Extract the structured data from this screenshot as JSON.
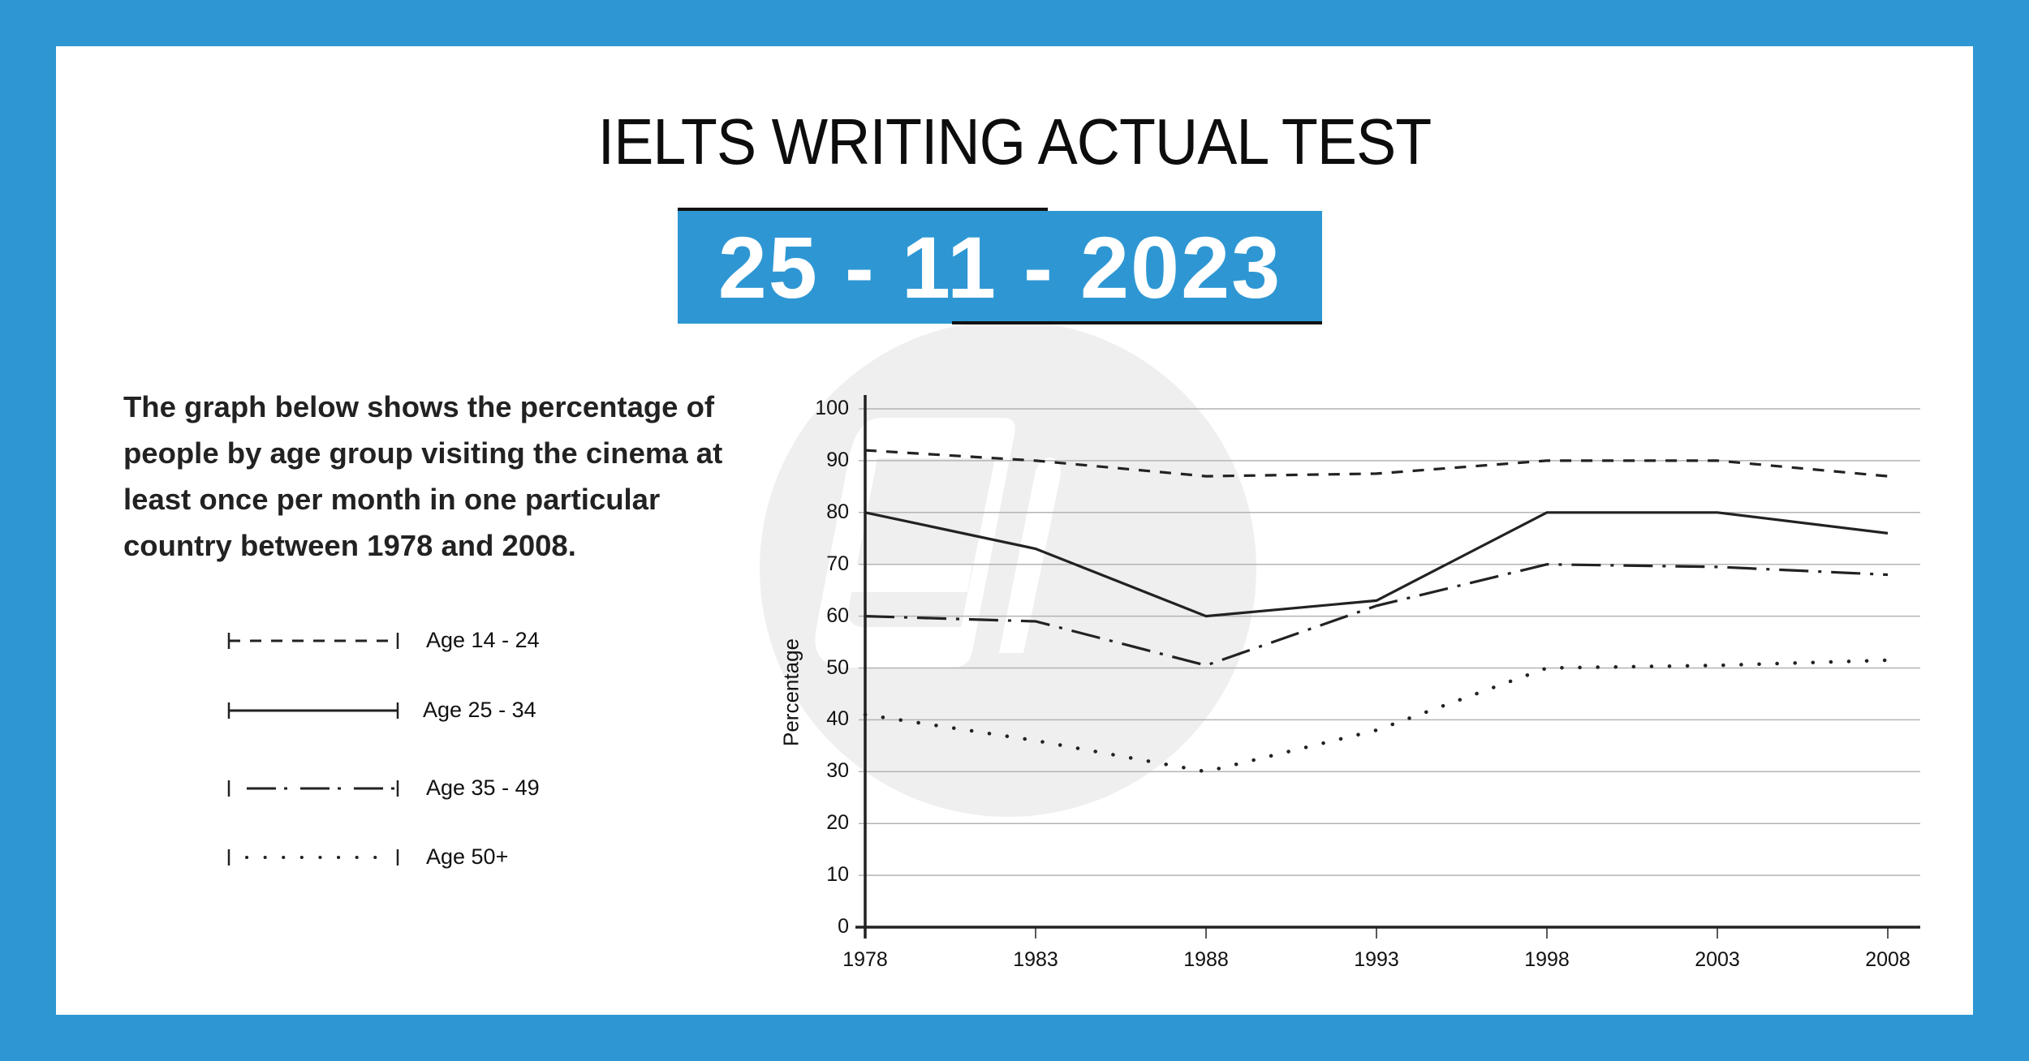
{
  "header": {
    "title": "IELTS WRITING ACTUAL TEST",
    "date": "25 - 11 - 2023"
  },
  "prompt": {
    "text": "The graph below shows the percentage of people by age group visiting the cinema at least once per month in one particular country between 1978 and 2008.",
    "lines": [
      "The graph below shows the percentage of",
      "people by age group visiting the cinema at",
      "least once per month in one particular",
      "country between 1978 and 2008."
    ]
  },
  "legend": {
    "items": [
      {
        "label": "Age 14 - 24",
        "style": "dashed"
      },
      {
        "label": "Age 25 - 34",
        "style": "solid"
      },
      {
        "label": "Age 35 - 49",
        "style": "dash-dot"
      },
      {
        "label": "Age 50+",
        "style": "dotted"
      }
    ]
  },
  "colors": {
    "brand_blue": "#2e97d3",
    "line": "#222222",
    "grid": "#b4b4b4",
    "watermark": "#efefef"
  },
  "chart_data": {
    "type": "line",
    "title": "",
    "xlabel": "",
    "ylabel": "Percentage",
    "categories": [
      "1978",
      "1983",
      "1988",
      "1993",
      "1998",
      "2003",
      "2008"
    ],
    "yticks": [
      "0",
      "10",
      "20",
      "30",
      "40",
      "50",
      "60",
      "70",
      "80",
      "90",
      "100"
    ],
    "ylim": [
      0,
      100
    ],
    "grid": true,
    "legend_position": "left",
    "series": [
      {
        "name": "Age 14 - 24",
        "style": "dashed",
        "values": [
          92,
          90,
          87,
          87.5,
          90,
          90,
          87
        ]
      },
      {
        "name": "Age 25 - 34",
        "style": "solid",
        "values": [
          80,
          73,
          60,
          63,
          80,
          80,
          76
        ]
      },
      {
        "name": "Age 35 - 49",
        "style": "dash-dot",
        "values": [
          60,
          59,
          50.5,
          62,
          70,
          69.5,
          68
        ]
      },
      {
        "name": "Age 50+",
        "style": "dotted",
        "values": [
          41,
          36,
          30,
          38,
          50,
          50.5,
          51.5
        ]
      }
    ]
  }
}
